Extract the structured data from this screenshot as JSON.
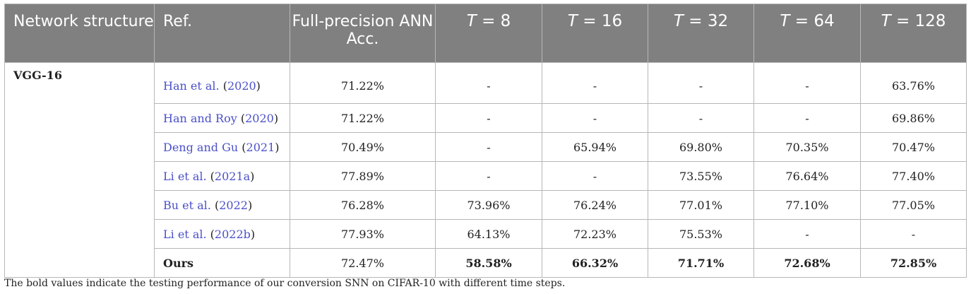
{
  "table": {
    "headers": {
      "network": "Network structure",
      "ref": "Ref.",
      "ann": "Full-precision ANN Acc.",
      "t8": "= 8",
      "t16": "= 16",
      "t32": "= 32",
      "t64": "= 64",
      "t128": "= 128",
      "t_var": "T"
    },
    "network_name": "VGG-16",
    "rows": [
      {
        "author": "Han et al.",
        "year": "2020",
        "ann": "71.22%",
        "t8": "-",
        "t16": "-",
        "t32": "-",
        "t64": "-",
        "t128": "63.76%"
      },
      {
        "author": "Han and Roy",
        "year": "2020",
        "ann": "71.22%",
        "t8": "-",
        "t16": "-",
        "t32": "-",
        "t64": "-",
        "t128": "69.86%"
      },
      {
        "author": "Deng and Gu",
        "year": "2021",
        "ann": "70.49%",
        "t8": "-",
        "t16": "65.94%",
        "t32": "69.80%",
        "t64": "70.35%",
        "t128": "70.47%"
      },
      {
        "author": "Li et al.",
        "year": "2021a",
        "ann": "77.89%",
        "t8": "-",
        "t16": "-",
        "t32": "73.55%",
        "t64": "76.64%",
        "t128": "77.40%"
      },
      {
        "author": "Bu et al.",
        "year": "2022",
        "ann": "76.28%",
        "t8": "73.96%",
        "t16": "76.24%",
        "t32": "77.01%",
        "t64": "77.10%",
        "t128": "77.05%"
      },
      {
        "author": "Li et al.",
        "year": "2022b",
        "ann": "77.93%",
        "t8": "64.13%",
        "t16": "72.23%",
        "t32": "75.53%",
        "t64": "-",
        "t128": "-"
      }
    ],
    "ours": {
      "label": "Ours",
      "ann": "72.47%",
      "t8": "58.58%",
      "t16": "66.32%",
      "t32": "71.71%",
      "t64": "72.68%",
      "t128": "72.85%"
    }
  },
  "footnote": "The bold values indicate the testing performance of our conversion SNN on CIFAR-10 with different time steps.",
  "colors": {
    "header_bg": "#808080",
    "header_text": "#ffffff",
    "citation": "#4b50c8",
    "border": "#b7b7b7"
  }
}
